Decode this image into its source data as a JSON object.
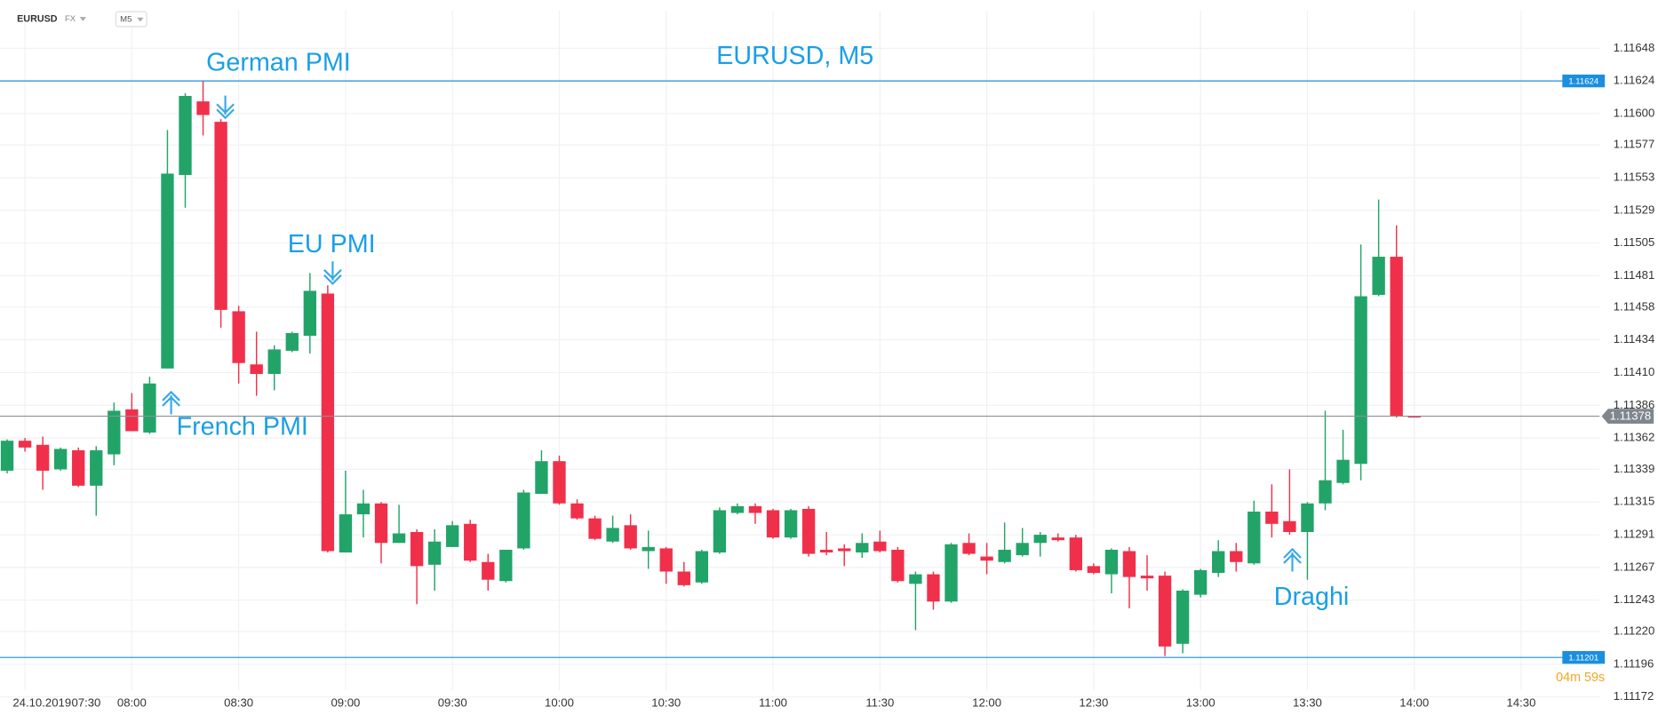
{
  "chart_data": {
    "type": "candlestick",
    "title": "EURUSD, M5",
    "symbol": "EURUSD",
    "market": "FX",
    "timeframe": "M5",
    "date": "24.10.2019",
    "countdown": "04m 59s",
    "up_color": "#22a469",
    "down_color": "#f0304b",
    "grid": true,
    "x": [
      445,
      450,
      455,
      460,
      465,
      470,
      475,
      480,
      485,
      490,
      495,
      500,
      505,
      510,
      515,
      520,
      525,
      530,
      535,
      540,
      545,
      550,
      555,
      560,
      565,
      570,
      575,
      580,
      585,
      590,
      595,
      600,
      605,
      610,
      615,
      620,
      625,
      630,
      635,
      640,
      645,
      650,
      655,
      660,
      665,
      670,
      675,
      680,
      685,
      690,
      695,
      700,
      705,
      710,
      715,
      720,
      725,
      730,
      735,
      740,
      745,
      750,
      755,
      760,
      765,
      770,
      775,
      780,
      785,
      790,
      795,
      800,
      805,
      810,
      815,
      820,
      825,
      830,
      835,
      840
    ],
    "open": [
      1.11338,
      1.1136,
      1.11357,
      1.11339,
      1.11353,
      1.11327,
      1.1135,
      1.11383,
      1.11366,
      1.11413,
      1.11555,
      1.11609,
      1.11594,
      1.11455,
      1.11416,
      1.11409,
      1.11426,
      1.11437,
      1.11468,
      1.11278,
      1.11306,
      1.11314,
      1.11285,
      1.11293,
      1.11269,
      1.11282,
      1.11299,
      1.11271,
      1.11257,
      1.11281,
      1.11321,
      1.11345,
      1.11314,
      1.11303,
      1.11286,
      1.11298,
      1.11279,
      1.11281,
      1.11264,
      1.11256,
      1.11278,
      1.11307,
      1.11312,
      1.11309,
      1.11289,
      1.1131,
      1.1128,
      1.11281,
      1.11278,
      1.11286,
      1.1128,
      1.11255,
      1.11262,
      1.11242,
      1.11285,
      1.11275,
      1.11271,
      1.11276,
      1.11285,
      1.11289,
      1.11289,
      1.11268,
      1.11262,
      1.11279,
      1.11261,
      1.11261,
      1.11211,
      1.11247,
      1.11263,
      1.11279,
      1.1127,
      1.11308,
      1.11301,
      1.11293,
      1.11314,
      1.11329,
      1.11343,
      1.11467,
      1.11495,
      1.11378
    ],
    "high": [
      1.11361,
      1.11362,
      1.11363,
      1.11355,
      1.11355,
      1.11356,
      1.11388,
      1.11395,
      1.11407,
      1.11588,
      1.11615,
      1.11624,
      1.11596,
      1.11459,
      1.1144,
      1.1143,
      1.1144,
      1.11483,
      1.11474,
      1.11338,
      1.11324,
      1.11315,
      1.11313,
      1.11295,
      1.11295,
      1.11301,
      1.11302,
      1.11277,
      1.1128,
      1.11324,
      1.11353,
      1.11349,
      1.11317,
      1.11305,
      1.11305,
      1.11306,
      1.11294,
      1.11282,
      1.11271,
      1.1128,
      1.11311,
      1.11314,
      1.11314,
      1.1131,
      1.1131,
      1.11312,
      1.11293,
      1.11284,
      1.11292,
      1.11294,
      1.11282,
      1.11264,
      1.11264,
      1.11285,
      1.11292,
      1.11285,
      1.113,
      1.11296,
      1.11293,
      1.11292,
      1.11291,
      1.1127,
      1.11281,
      1.11282,
      1.11276,
      1.11264,
      1.11251,
      1.11266,
      1.11287,
      1.11285,
      1.11316,
      1.11328,
      1.11339,
      1.11315,
      1.11382,
      1.11368,
      1.11504,
      1.11537,
      1.11518,
      1.11378
    ],
    "low": [
      1.11336,
      1.11352,
      1.11324,
      1.11338,
      1.11326,
      1.11305,
      1.11342,
      1.11367,
      1.11365,
      1.11413,
      1.11531,
      1.11584,
      1.11443,
      1.11402,
      1.11393,
      1.11397,
      1.11425,
      1.11424,
      1.11278,
      1.11278,
      1.11289,
      1.1127,
      1.11285,
      1.1124,
      1.1125,
      1.11282,
      1.11271,
      1.1125,
      1.11256,
      1.1128,
      1.11321,
      1.11313,
      1.11302,
      1.11287,
      1.11285,
      1.1128,
      1.11266,
      1.11255,
      1.11253,
      1.11255,
      1.11277,
      1.11306,
      1.11299,
      1.11288,
      1.11288,
      1.11275,
      1.11276,
      1.11268,
      1.11274,
      1.11278,
      1.11256,
      1.11221,
      1.11236,
      1.11241,
      1.11276,
      1.11262,
      1.1127,
      1.11275,
      1.11275,
      1.11286,
      1.11264,
      1.11262,
      1.11248,
      1.11237,
      1.1125,
      1.11202,
      1.11204,
      1.11245,
      1.1126,
      1.11264,
      1.11269,
      1.11289,
      1.11291,
      1.11258,
      1.11309,
      1.11328,
      1.11331,
      1.11466,
      1.11377,
      1.11377
    ],
    "close": [
      1.1136,
      1.11355,
      1.11338,
      1.11354,
      1.11327,
      1.11353,
      1.11382,
      1.11367,
      1.11402,
      1.11556,
      1.11613,
      1.11599,
      1.11456,
      1.11417,
      1.11409,
      1.11427,
      1.11439,
      1.1147,
      1.11279,
      1.11306,
      1.11314,
      1.11285,
      1.11292,
      1.11268,
      1.11286,
      1.11298,
      1.11272,
      1.11258,
      1.1128,
      1.11322,
      1.11345,
      1.11314,
      1.11303,
      1.11288,
      1.11296,
      1.11281,
      1.11282,
      1.11264,
      1.11254,
      1.11279,
      1.11309,
      1.11312,
      1.11307,
      1.11289,
      1.11309,
      1.11277,
      1.11278,
      1.11279,
      1.11285,
      1.11279,
      1.11257,
      1.11262,
      1.11242,
      1.11284,
      1.11277,
      1.11272,
      1.1128,
      1.11285,
      1.11291,
      1.11287,
      1.11265,
      1.11263,
      1.1128,
      1.1126,
      1.11259,
      1.11209,
      1.1125,
      1.11265,
      1.11279,
      1.11271,
      1.11308,
      1.11299,
      1.11293,
      1.11314,
      1.11331,
      1.11346,
      1.11466,
      1.11495,
      1.11378,
      1.11377
    ],
    "xlim": [
      443,
      892
    ],
    "ylim": [
      1.11172,
      1.1166
    ],
    "xticks": [
      {
        "value": 450,
        "label": "07:30"
      },
      {
        "value": 480,
        "label": "08:00"
      },
      {
        "value": 510,
        "label": "08:30"
      },
      {
        "value": 540,
        "label": "09:00"
      },
      {
        "value": 570,
        "label": "09:30"
      },
      {
        "value": 600,
        "label": "10:00"
      },
      {
        "value": 630,
        "label": "10:30"
      },
      {
        "value": 660,
        "label": "11:00"
      },
      {
        "value": 690,
        "label": "11:30"
      },
      {
        "value": 720,
        "label": "12:00"
      },
      {
        "value": 750,
        "label": "12:30"
      },
      {
        "value": 780,
        "label": "13:00"
      },
      {
        "value": 810,
        "label": "13:30"
      },
      {
        "value": 840,
        "label": "14:00"
      },
      {
        "value": 870,
        "label": "14:30"
      }
    ],
    "yticks": [
      1.11648,
      1.11624,
      {
        "value": 1.116,
        "label": "1.11600"
      },
      1.11577,
      1.11553,
      1.11529,
      1.11505,
      1.11481,
      1.11458,
      1.11434,
      {
        "value": 1.1141,
        "label": "1.11410"
      },
      1.11386,
      1.11362,
      1.11339,
      1.11315,
      1.11291,
      1.11267,
      1.11243,
      {
        "value": 1.1122,
        "label": "1.11220"
      },
      1.11196,
      1.11172
    ],
    "hlines": [
      1.11624,
      1.11201
    ],
    "hline_color": "#1a8fe0",
    "current_price": 1.11378,
    "annotations": [
      "German PMI",
      "EU PMI",
      "French PMI",
      "Draghi"
    ]
  }
}
